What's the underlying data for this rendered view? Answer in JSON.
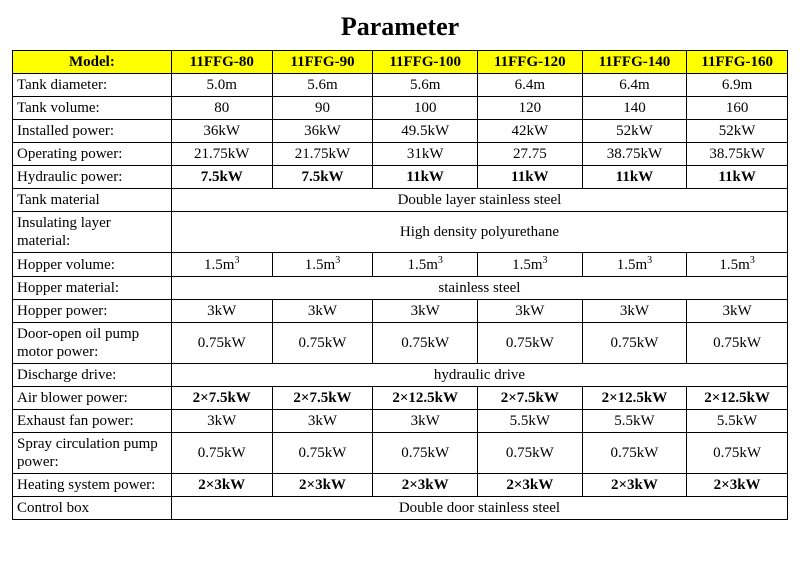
{
  "title": "Parameter",
  "header": {
    "label": "Model:",
    "cols": [
      "11FFG-80",
      "11FFG-90",
      "11FFG-100",
      "11FFG-120",
      "11FFG-140",
      "11FFG-160"
    ]
  },
  "col_widths": [
    "20.5%",
    "13%",
    "13%",
    "13.5%",
    "13.5%",
    "13.5%",
    "13%"
  ],
  "rows": [
    {
      "label": "Tank diameter:",
      "type": "cells",
      "bold": false,
      "cells": [
        "5.0m",
        "5.6m",
        "5.6m",
        "6.4m",
        "6.4m",
        "6.9m"
      ]
    },
    {
      "label": "Tank volume:",
      "type": "cells",
      "bold": false,
      "cells": [
        "80",
        "90",
        "100",
        "120",
        "140",
        "160"
      ]
    },
    {
      "label": "Installed power:",
      "type": "cells",
      "bold": false,
      "cells": [
        "36kW",
        "36kW",
        "49.5kW",
        "42kW",
        "52kW",
        "52kW"
      ]
    },
    {
      "label": "Operating power:",
      "type": "cells",
      "bold": false,
      "cells": [
        "21.75kW",
        "21.75kW",
        "31kW",
        "27.75",
        "38.75kW",
        "38.75kW"
      ]
    },
    {
      "label": "Hydraulic power:",
      "type": "cells",
      "bold": true,
      "cells": [
        "7.5kW",
        "7.5kW",
        "11kW",
        "11kW",
        "11kW",
        "11kW"
      ]
    },
    {
      "label": "Tank material",
      "type": "span",
      "bold": false,
      "value": "Double layer stainless steel"
    },
    {
      "label": "Insulating layer material:",
      "type": "span",
      "bold": false,
      "value": "High density polyurethane"
    },
    {
      "label": "Hopper volume:",
      "type": "cells",
      "bold": false,
      "sup": "3",
      "cells": [
        "1.5m",
        "1.5m",
        "1.5m",
        "1.5m",
        "1.5m",
        "1.5m"
      ]
    },
    {
      "label": "Hopper material:",
      "type": "span",
      "bold": false,
      "value": "stainless steel"
    },
    {
      "label": "Hopper power:",
      "type": "cells",
      "bold": false,
      "cells": [
        "3kW",
        "3kW",
        "3kW",
        "3kW",
        "3kW",
        "3kW"
      ]
    },
    {
      "label": "Door-open oil pump motor power:",
      "type": "cells",
      "bold": false,
      "cells": [
        "0.75kW",
        "0.75kW",
        "0.75kW",
        "0.75kW",
        "0.75kW",
        "0.75kW"
      ]
    },
    {
      "label": "Discharge drive:",
      "type": "span",
      "bold": false,
      "value": "hydraulic drive"
    },
    {
      "label": "Air blower power:",
      "type": "cells",
      "bold": true,
      "cells": [
        "2×7.5kW",
        "2×7.5kW",
        "2×12.5kW",
        "2×7.5kW",
        "2×12.5kW",
        "2×12.5kW"
      ]
    },
    {
      "label": "Exhaust fan power:",
      "type": "cells",
      "bold": false,
      "cells": [
        "3kW",
        "3kW",
        "3kW",
        "5.5kW",
        "5.5kW",
        "5.5kW"
      ]
    },
    {
      "label": "Spray circulation pump power:",
      "type": "cells",
      "bold": false,
      "cells": [
        "0.75kW",
        "0.75kW",
        "0.75kW",
        "0.75kW",
        "0.75kW",
        "0.75kW"
      ]
    },
    {
      "label": "Heating system power:",
      "type": "cells",
      "bold": true,
      "cells": [
        "2×3kW",
        "2×3kW",
        "2×3kW",
        "2×3kW",
        "2×3kW",
        "2×3kW"
      ]
    },
    {
      "label": "Control box",
      "type": "span",
      "bold": false,
      "value": "Double door stainless steel"
    }
  ],
  "colors": {
    "header_bg": "#ffff00",
    "border": "#000000",
    "bg": "#ffffff",
    "text": "#000000"
  }
}
